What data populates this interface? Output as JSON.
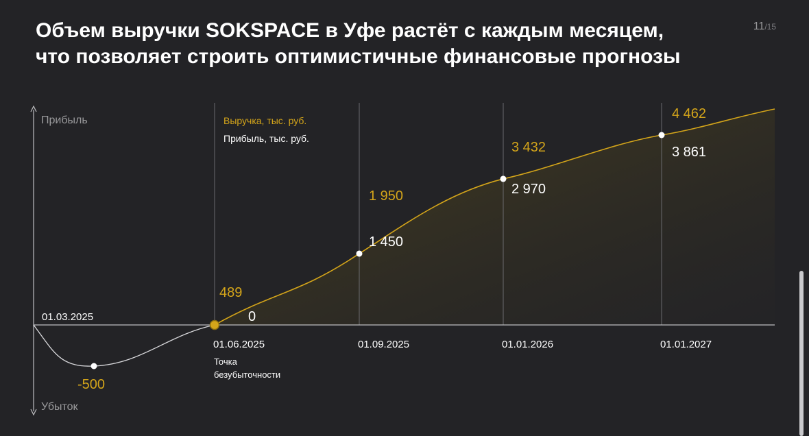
{
  "title_lines": [
    "Объем выручки SOKSPACE в Уфе растёт с каждым месяцем,",
    "что позволяет строить оптимистичные финансовые прогнозы"
  ],
  "pager": {
    "current": "11",
    "total": "/15"
  },
  "colors": {
    "background": "#232326",
    "revenue": "#d4a51a",
    "profit": "#ffffff",
    "axis": "#bfbfc2",
    "grid": "#6a6a6e"
  },
  "chart_data": {
    "type": "line",
    "y_axis": {
      "top_label": "Прибыль",
      "bottom_label": "Убыток"
    },
    "x": [
      "01.03.2025",
      "01.06.2025",
      "01.09.2025",
      "01.01.2026",
      "01.01.2027"
    ],
    "series": [
      {
        "name": "Выручка, тыс. руб.",
        "values": [
          null,
          489,
          1950,
          3432,
          4462
        ]
      },
      {
        "name": "Прибыль, тыс. руб.",
        "values": [
          null,
          0,
          1450,
          2970,
          3861
        ]
      }
    ],
    "loss_point": {
      "value": -500,
      "label": "-500"
    },
    "revenue_labels": [
      "489",
      "1 950",
      "3 432",
      "4 462"
    ],
    "profit_labels": [
      "0",
      "1 450",
      "2 970",
      "3 861"
    ],
    "annotation": [
      "Точка",
      "безубыточности"
    ]
  }
}
